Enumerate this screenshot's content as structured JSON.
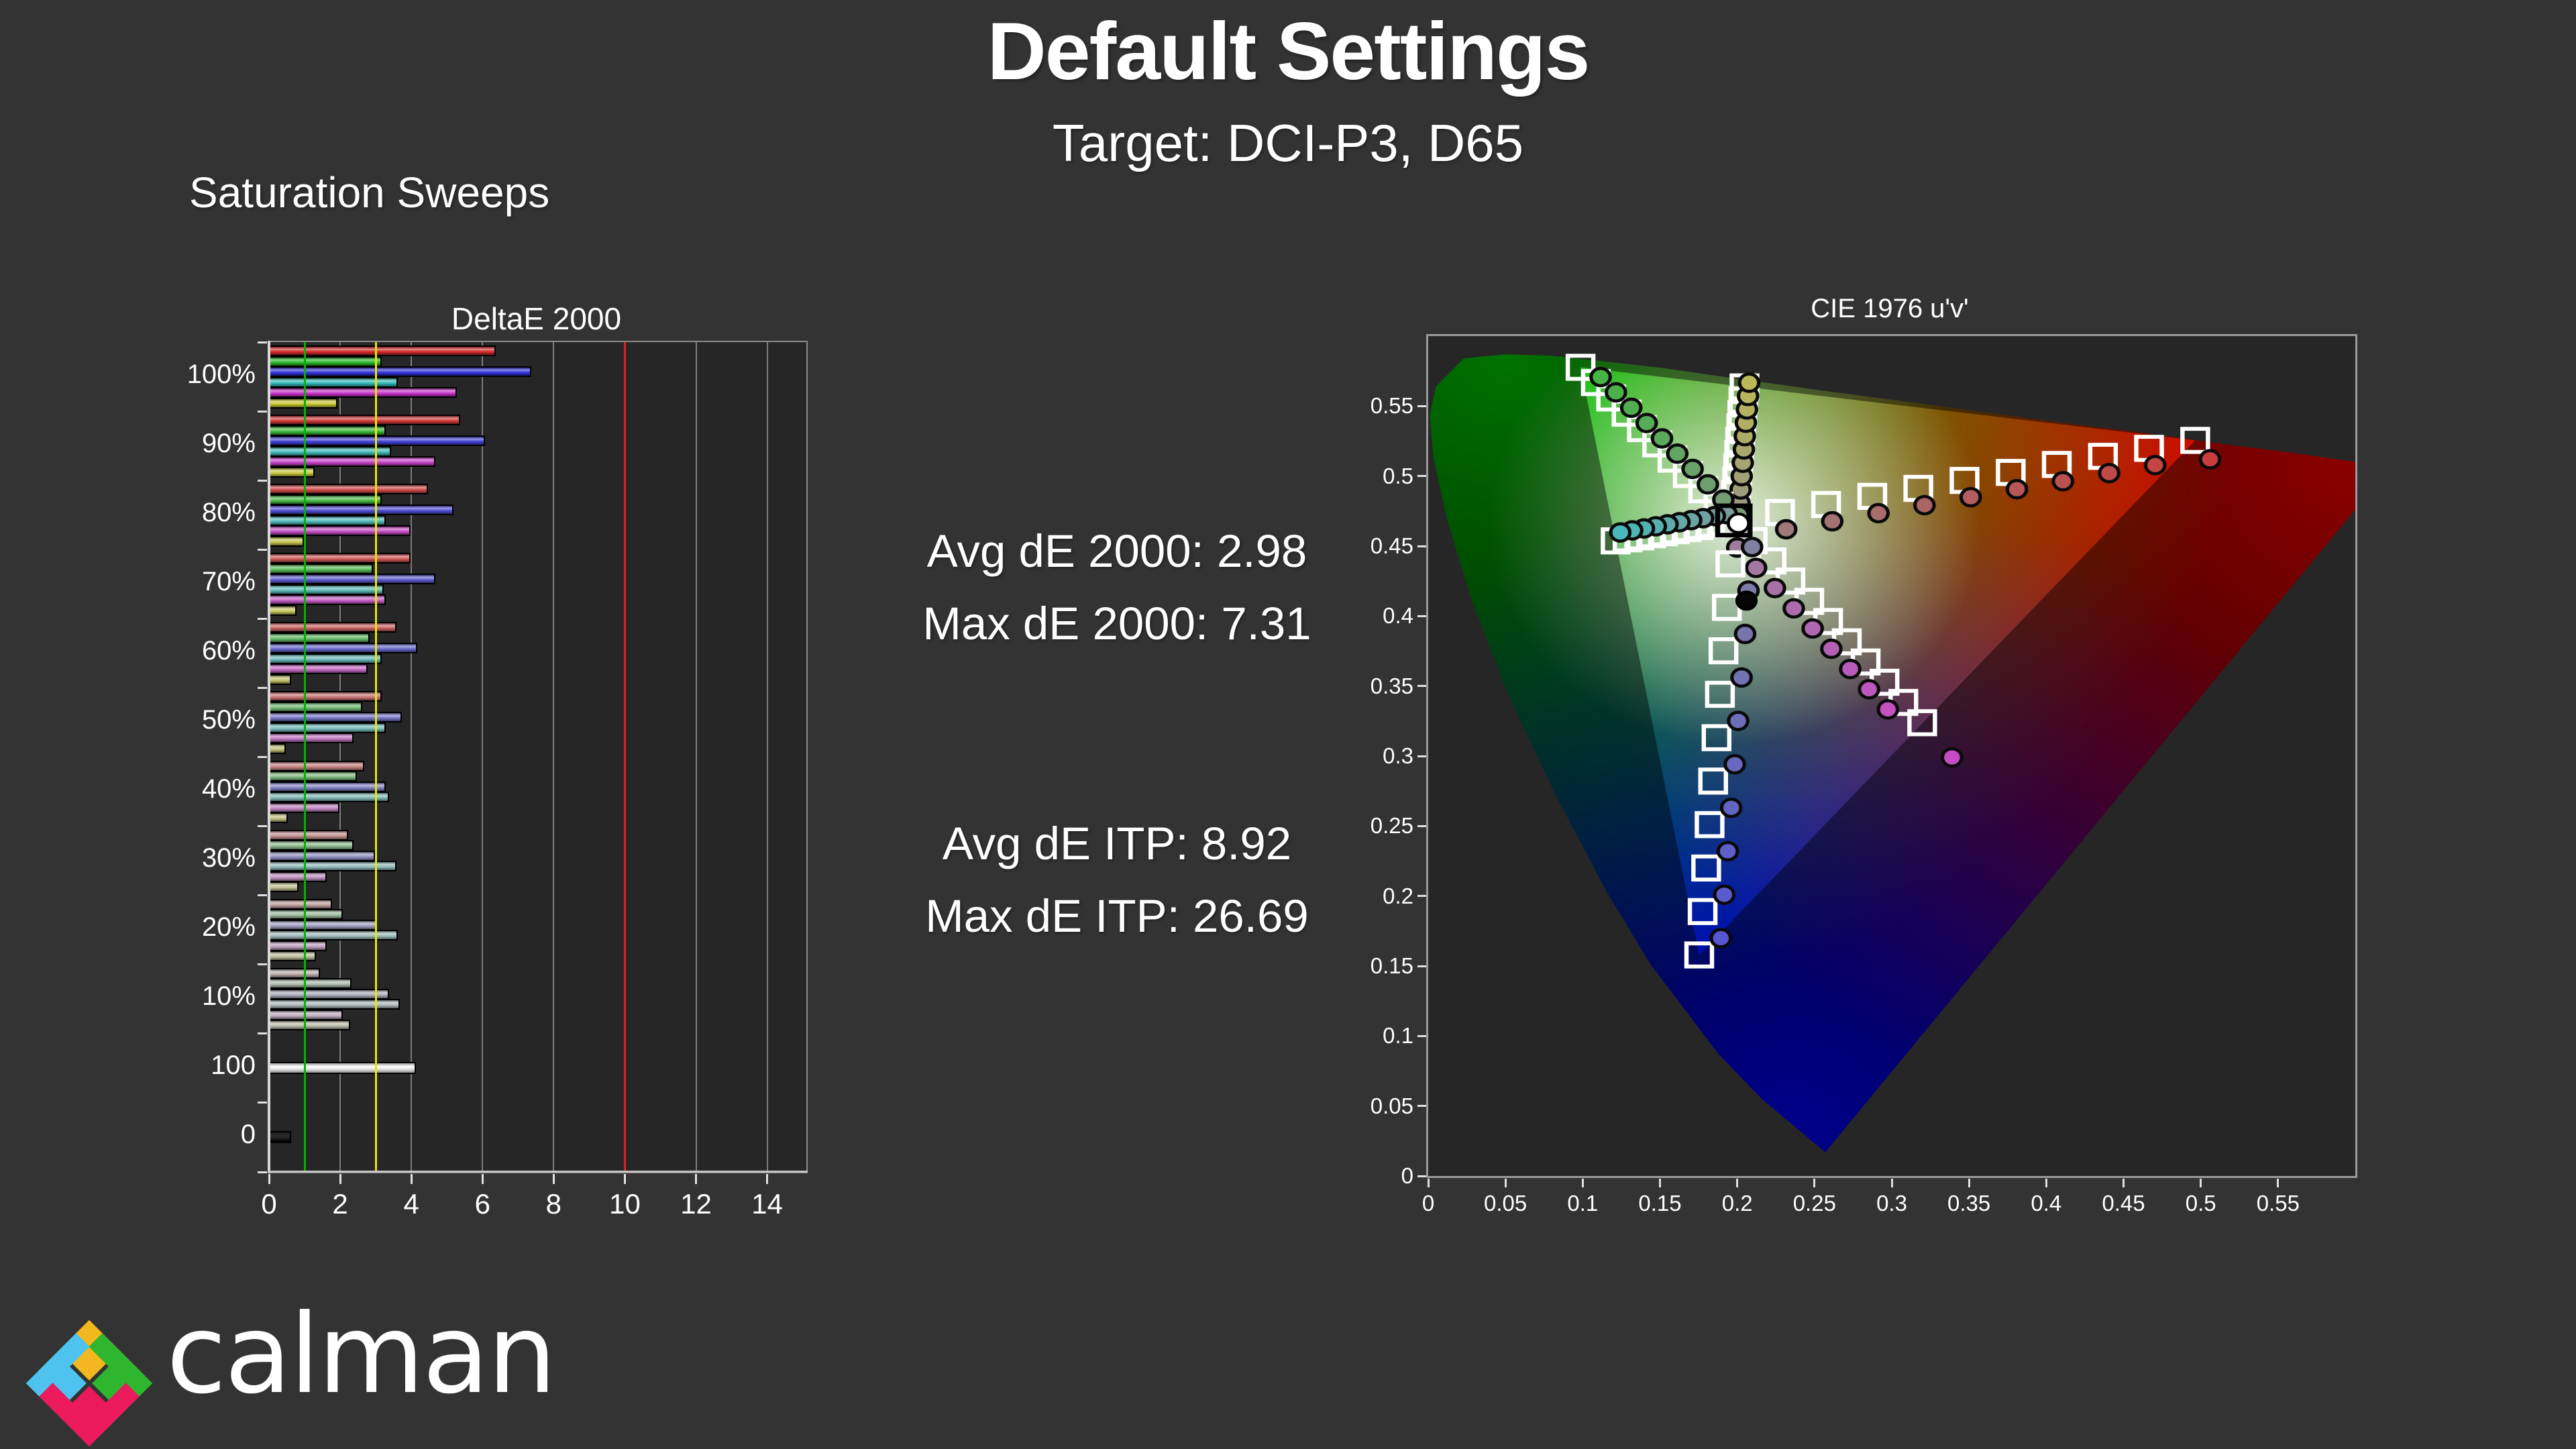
{
  "page": {
    "title": "Default Settings",
    "subtitle": "Target: DCI-P3, D65",
    "section_label": "Saturation Sweeps",
    "background": "#333333"
  },
  "stats": {
    "de2000": [
      {
        "label": "Avg dE 2000:",
        "value": "2.98"
      },
      {
        "label": "Max dE 2000:",
        "value": "7.31"
      }
    ],
    "itp": [
      {
        "label": "Avg dE ITP:",
        "value": "8.92"
      },
      {
        "label": "Max dE ITP:",
        "value": "26.69"
      }
    ]
  },
  "chart_data": [
    {
      "type": "bar",
      "title": "DeltaE 2000",
      "orientation": "horizontal",
      "x_ticks": [
        0,
        2,
        4,
        6,
        8,
        10,
        12,
        14
      ],
      "x_axis_max": 15.1,
      "series": [
        "red",
        "green",
        "blue",
        "cyan",
        "magenta",
        "yellow"
      ],
      "series_colors": {
        "red": "#d42a2a",
        "green": "#2ab82a",
        "blue": "#3232d8",
        "cyan": "#32b8b8",
        "magenta": "#c832c8",
        "yellow": "#c8c832"
      },
      "reference_lines": [
        {
          "value": 1,
          "color": "#00b400"
        },
        {
          "value": 3,
          "color": "#e6e600"
        },
        {
          "value": 10,
          "color": "#e02020"
        }
      ],
      "rows": [
        {
          "label": "100%",
          "saturation": 1.0,
          "values": [
            6.3,
            3.1,
            7.3,
            3.55,
            5.2,
            1.85
          ]
        },
        {
          "label": "90%",
          "saturation": 0.9,
          "values": [
            5.3,
            3.2,
            6.0,
            3.35,
            4.6,
            1.2
          ]
        },
        {
          "label": "80%",
          "saturation": 0.8,
          "values": [
            4.4,
            3.1,
            5.1,
            3.2,
            3.9,
            0.9
          ]
        },
        {
          "label": "70%",
          "saturation": 0.7,
          "values": [
            3.9,
            2.85,
            4.6,
            3.15,
            3.2,
            0.7
          ]
        },
        {
          "label": "60%",
          "saturation": 0.6,
          "values": [
            3.5,
            2.75,
            4.1,
            3.1,
            2.7,
            0.55
          ]
        },
        {
          "label": "50%",
          "saturation": 0.5,
          "values": [
            3.1,
            2.55,
            3.65,
            3.2,
            2.3,
            0.4
          ]
        },
        {
          "label": "40%",
          "saturation": 0.4,
          "values": [
            2.6,
            2.4,
            3.2,
            3.3,
            1.9,
            0.45
          ]
        },
        {
          "label": "30%",
          "saturation": 0.3,
          "values": [
            2.15,
            2.3,
            2.9,
            3.5,
            1.55,
            0.75
          ]
        },
        {
          "label": "20%",
          "saturation": 0.2,
          "values": [
            1.7,
            2.0,
            2.95,
            3.55,
            1.55,
            1.25
          ]
        },
        {
          "label": "10%",
          "saturation": 0.1,
          "values": [
            1.35,
            2.25,
            3.3,
            3.6,
            2.0,
            2.2
          ]
        },
        {
          "label": "100",
          "type": "white",
          "values": [
            4.05
          ]
        },
        {
          "label": "0",
          "type": "black",
          "values": [
            0.55
          ]
        }
      ]
    },
    {
      "type": "scatter",
      "title": "CIE 1976 u'v'",
      "axis_max": 0.6,
      "x_ticks": [
        "0",
        "0.05",
        "0.1",
        "0.15",
        "0.2",
        "0.25",
        "0.3",
        "0.35",
        "0.4",
        "0.45",
        "0.5",
        "0.55"
      ],
      "y_ticks": [
        "0",
        "0.05",
        "0.1",
        "0.15",
        "0.2",
        "0.25",
        "0.3",
        "0.35",
        "0.4",
        "0.45",
        "0.5",
        "0.55"
      ],
      "gamut_name": "DCI-P3",
      "white_point": [
        0.1978,
        0.4683
      ],
      "black_measurement": [
        0.206,
        0.411
      ],
      "gamut_triangle": {
        "red": [
          0.4964,
          0.5255
        ],
        "green": [
          0.0986,
          0.5777
        ],
        "blue": [
          0.1754,
          0.1579
        ]
      },
      "spectral_locus": [
        [
          0.257,
          0.017
        ],
        [
          0.216,
          0.055
        ],
        [
          0.188,
          0.087
        ],
        [
          0.144,
          0.151
        ],
        [
          0.115,
          0.204
        ],
        [
          0.083,
          0.271
        ],
        [
          0.052,
          0.343
        ],
        [
          0.028,
          0.412
        ],
        [
          0.012,
          0.47
        ],
        [
          0.0035,
          0.513
        ],
        [
          0.001,
          0.543
        ],
        [
          0.005,
          0.564
        ],
        [
          0.023,
          0.584
        ],
        [
          0.05,
          0.587
        ],
        [
          0.079,
          0.586
        ],
        [
          0.113,
          0.582
        ],
        [
          0.153,
          0.577
        ],
        [
          0.203,
          0.569
        ],
        [
          0.262,
          0.56
        ],
        [
          0.331,
          0.55
        ],
        [
          0.404,
          0.539
        ],
        [
          0.469,
          0.53
        ],
        [
          0.52,
          0.522
        ],
        [
          0.557,
          0.517
        ],
        [
          0.6,
          0.51
        ],
        [
          0.623,
          0.507
        ]
      ],
      "sweeps": [
        {
          "name": "yellow",
          "point_color": "#c0bc50",
          "targets": [
            [
              0.1985,
              0.4778
            ],
            [
              0.1992,
              0.4874
            ],
            [
              0.1999,
              0.4969
            ],
            [
              0.2006,
              0.5065
            ],
            [
              0.2013,
              0.516
            ],
            [
              0.2019,
              0.5255
            ],
            [
              0.2026,
              0.5351
            ],
            [
              0.2033,
              0.5446
            ],
            [
              0.204,
              0.5542
            ],
            [
              0.2047,
              0.5637
            ]
          ],
          "measured": [
            [
              0.2015,
              0.4808
            ],
            [
              0.2022,
              0.4904
            ],
            [
              0.2029,
              0.4999
            ],
            [
              0.2036,
              0.5095
            ],
            [
              0.2043,
              0.519
            ],
            [
              0.2049,
              0.5285
            ],
            [
              0.2056,
              0.5381
            ],
            [
              0.2063,
              0.5476
            ],
            [
              0.207,
              0.5572
            ],
            [
              0.2077,
              0.5667
            ]
          ]
        },
        {
          "name": "green",
          "point_color": "#3cb83c",
          "targets": [
            [
              0.1879,
              0.4792
            ],
            [
              0.178,
              0.4902
            ],
            [
              0.168,
              0.5011
            ],
            [
              0.1581,
              0.5121
            ],
            [
              0.1482,
              0.523
            ],
            [
              0.1383,
              0.5339
            ],
            [
              0.1284,
              0.5449
            ],
            [
              0.1184,
              0.5558
            ],
            [
              0.1085,
              0.5668
            ],
            [
              0.0986,
              0.5777
            ]
          ],
          "measured": [
            [
              0.2009,
              0.4722
            ],
            [
              0.191,
              0.4832
            ],
            [
              0.181,
              0.4941
            ],
            [
              0.1711,
              0.5051
            ],
            [
              0.1612,
              0.516
            ],
            [
              0.1513,
              0.5269
            ],
            [
              0.1414,
              0.5379
            ],
            [
              0.1314,
              0.5488
            ],
            [
              0.1215,
              0.5598
            ],
            [
              0.1116,
              0.5707
            ]
          ]
        },
        {
          "name": "cyan",
          "point_color": "#40bcbc",
          "targets": [
            [
              0.1902,
              0.4668
            ],
            [
              0.1825,
              0.4654
            ],
            [
              0.1749,
              0.4639
            ],
            [
              0.1672,
              0.4625
            ],
            [
              0.1596,
              0.461
            ],
            [
              0.1519,
              0.4595
            ],
            [
              0.1443,
              0.4581
            ],
            [
              0.1366,
              0.4566
            ],
            [
              0.129,
              0.4552
            ],
            [
              0.1213,
              0.4537
            ]
          ],
          "measured": [
            [
              0.1932,
              0.4728
            ],
            [
              0.1855,
              0.4714
            ],
            [
              0.1779,
              0.4699
            ],
            [
              0.1702,
              0.4685
            ],
            [
              0.1626,
              0.467
            ],
            [
              0.1549,
              0.4655
            ],
            [
              0.1473,
              0.4641
            ],
            [
              0.1396,
              0.4626
            ],
            [
              0.132,
              0.4612
            ],
            [
              0.1243,
              0.4597
            ]
          ]
        },
        {
          "name": "red",
          "point_color": "#d03434",
          "targets": [
            [
              0.2277,
              0.474
            ],
            [
              0.2575,
              0.4797
            ],
            [
              0.2874,
              0.4855
            ],
            [
              0.3172,
              0.4912
            ],
            [
              0.3471,
              0.4969
            ],
            [
              0.377,
              0.5026
            ],
            [
              0.4068,
              0.5083
            ],
            [
              0.4367,
              0.5141
            ],
            [
              0.4665,
              0.5198
            ],
            [
              0.4964,
              0.5255
            ]
          ],
          "measured": [
            [
              0.2317,
              0.462
            ],
            [
              0.2615,
              0.4677
            ],
            [
              0.2914,
              0.4735
            ],
            [
              0.3212,
              0.4792
            ],
            [
              0.3511,
              0.4849
            ],
            [
              0.381,
              0.4906
            ],
            [
              0.4108,
              0.4963
            ],
            [
              0.4407,
              0.5021
            ],
            [
              0.4705,
              0.5078
            ],
            [
              0.506,
              0.512
            ]
          ]
        },
        {
          "name": "magenta",
          "point_color": "#cc44cc",
          "targets": [
            [
              0.21,
              0.4539
            ],
            [
              0.2222,
              0.4394
            ],
            [
              0.2344,
              0.425
            ],
            [
              0.2466,
              0.4105
            ],
            [
              0.2588,
              0.3961
            ],
            [
              0.2709,
              0.3816
            ],
            [
              0.2831,
              0.3672
            ],
            [
              0.2953,
              0.3527
            ],
            [
              0.3075,
              0.3383
            ],
            [
              0.3197,
              0.3238
            ]
          ],
          "measured": [
            [
              0.2,
              0.4489
            ],
            [
              0.2122,
              0.4344
            ],
            [
              0.2244,
              0.42
            ],
            [
              0.2366,
              0.4055
            ],
            [
              0.2488,
              0.3911
            ],
            [
              0.2609,
              0.3766
            ],
            [
              0.2731,
              0.3622
            ],
            [
              0.2853,
              0.3477
            ],
            [
              0.2975,
              0.3333
            ],
            [
              0.339,
              0.299
            ]
          ]
        },
        {
          "name": "blue",
          "point_color": "#5050dc",
          "targets": [
            [
              0.1956,
              0.4373
            ],
            [
              0.1933,
              0.4062
            ],
            [
              0.1911,
              0.3752
            ],
            [
              0.1888,
              0.3441
            ],
            [
              0.1866,
              0.3131
            ],
            [
              0.1844,
              0.2821
            ],
            [
              0.1821,
              0.251
            ],
            [
              0.1799,
              0.22
            ],
            [
              0.1776,
              0.1889
            ],
            [
              0.1754,
              0.1579
            ]
          ],
          "measured": [
            [
              0.2096,
              0.4493
            ],
            [
              0.2073,
              0.4182
            ],
            [
              0.2051,
              0.3872
            ],
            [
              0.2028,
              0.3561
            ],
            [
              0.2006,
              0.3251
            ],
            [
              0.1984,
              0.2941
            ],
            [
              0.1961,
              0.263
            ],
            [
              0.1939,
              0.232
            ],
            [
              0.1916,
              0.2009
            ],
            [
              0.1894,
              0.1699
            ]
          ]
        }
      ]
    }
  ],
  "logo": {
    "wordmark": "calman",
    "colors": {
      "yellow": "#F3B71F",
      "blue": "#4EC3F0",
      "green": "#2EB62E",
      "pink": "#EA1A5D"
    }
  }
}
